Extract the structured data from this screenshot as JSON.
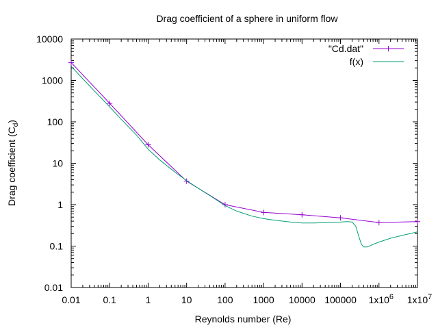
{
  "chart_data": {
    "type": "line",
    "title": "Drag coefficient of a sphere in uniform flow",
    "xlabel": "Reynolds number (Re)",
    "ylabel": {
      "main": "Drag coefficient (C",
      "sub": "d",
      "close": ")"
    },
    "x_scale": "log",
    "y_scale": "log",
    "xlim": [
      0.01,
      10000000
    ],
    "ylim": [
      0.01,
      10000
    ],
    "grid": false,
    "legend_position": "top-right",
    "x_ticks": [
      {
        "value": 0.01,
        "label": "0.01"
      },
      {
        "value": 0.1,
        "label": "0.1"
      },
      {
        "value": 1,
        "label": "1"
      },
      {
        "value": 10,
        "label": "10"
      },
      {
        "value": 100,
        "label": "100"
      },
      {
        "value": 1000,
        "label": "1000"
      },
      {
        "value": 10000,
        "label": "10000"
      },
      {
        "value": 100000,
        "label": "100000"
      },
      {
        "value": 1000000,
        "label": "1x10",
        "exp": "6"
      },
      {
        "value": 10000000,
        "label": "1x10",
        "exp": "7"
      }
    ],
    "y_ticks": [
      {
        "value": 0.01,
        "label": "0.01"
      },
      {
        "value": 0.1,
        "label": "0.1"
      },
      {
        "value": 1,
        "label": "1"
      },
      {
        "value": 10,
        "label": "10"
      },
      {
        "value": 100,
        "label": "100"
      },
      {
        "value": 1000,
        "label": "1000"
      },
      {
        "value": 10000,
        "label": "10000"
      }
    ],
    "series": [
      {
        "name": "\"Cd.dat\"",
        "color": "#9400d3",
        "marker": "plus",
        "x": [
          0.01,
          0.1,
          1,
          10,
          100,
          1000,
          10000,
          100000,
          1000000,
          10000000
        ],
        "y": [
          2700,
          280,
          28,
          3.7,
          1.0,
          0.65,
          0.57,
          0.48,
          0.37,
          0.39
        ]
      },
      {
        "name": "f(x)",
        "color": "#009e73",
        "marker": "none",
        "x": [
          0.01,
          0.02,
          0.05,
          0.1,
          0.2,
          0.5,
          1,
          2,
          5,
          10,
          20,
          50,
          100,
          200,
          500,
          1000,
          2000,
          5000,
          10000,
          20000,
          50000,
          100000,
          150000,
          200000,
          250000,
          300000,
          350000,
          400000,
          500000,
          700000,
          1000000,
          2000000,
          5000000,
          10000000
        ],
        "y": [
          2200,
          1100,
          450,
          230,
          115,
          48,
          22,
          12,
          6.1,
          3.8,
          2.5,
          1.45,
          0.95,
          0.7,
          0.53,
          0.46,
          0.42,
          0.38,
          0.36,
          0.36,
          0.37,
          0.38,
          0.39,
          0.38,
          0.3,
          0.17,
          0.11,
          0.095,
          0.095,
          0.11,
          0.125,
          0.155,
          0.19,
          0.22
        ]
      }
    ]
  }
}
